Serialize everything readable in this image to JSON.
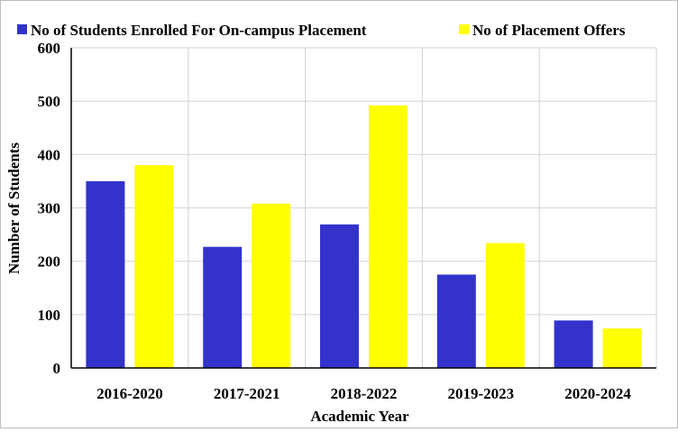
{
  "chart_data": {
    "type": "bar",
    "title": "",
    "xlabel": "Academic Year",
    "ylabel": "Number of Students",
    "categories": [
      "2016-2020",
      "2017-2021",
      "2018-2022",
      "2019-2023",
      "2020-2024"
    ],
    "series": [
      {
        "name": "No of Students Enrolled For On-campus Placement",
        "color": "#3333cc",
        "values": [
          350,
          227,
          269,
          175,
          89
        ]
      },
      {
        "name": "No of Placement Offers",
        "color": "#ffff00",
        "values": [
          380,
          308,
          492,
          234,
          74
        ]
      }
    ],
    "ylim": [
      0,
      600
    ],
    "yticks": [
      0,
      100,
      200,
      300,
      400,
      500,
      600
    ],
    "grid": true,
    "legend": "top"
  }
}
